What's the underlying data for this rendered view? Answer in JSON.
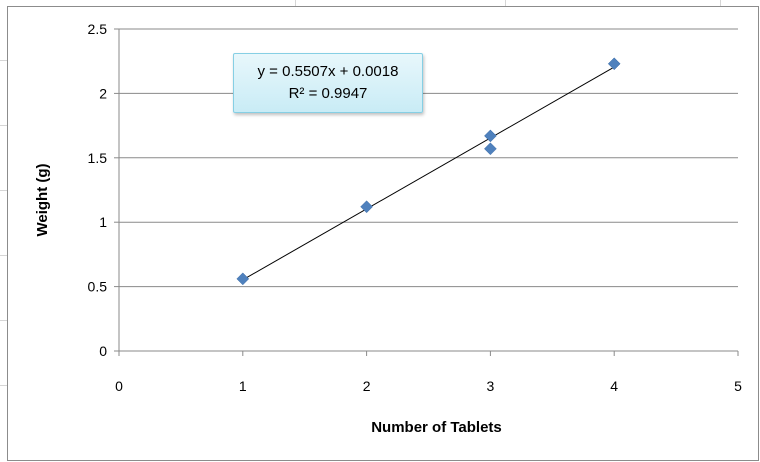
{
  "chart_data": {
    "type": "scatter",
    "title": "",
    "xlabel": "Number of Tablets",
    "ylabel": "Weight (g)",
    "xlim": [
      0,
      5
    ],
    "ylim": [
      0,
      2.5
    ],
    "x_ticks": [
      "0",
      "1",
      "2",
      "3",
      "4",
      "5"
    ],
    "y_ticks": [
      "0",
      "0.5",
      "1",
      "1.5",
      "2",
      "2.5"
    ],
    "grid": "horizontal",
    "legend": "none",
    "series": [
      {
        "points": [
          {
            "x": 1,
            "y": 0.56
          },
          {
            "x": 2,
            "y": 1.12
          },
          {
            "x": 3,
            "y": 1.57
          },
          {
            "x": 3,
            "y": 1.67
          },
          {
            "x": 4,
            "y": 2.23
          }
        ],
        "marker": "diamond",
        "color": "#4f81bd"
      }
    ],
    "trendline": {
      "type": "linear",
      "slope": 0.5507,
      "intercept": 0.0018,
      "x_range": [
        1,
        4
      ],
      "color": "#000000",
      "equation_label": "y = 0.5507x + 0.0018",
      "r2_label": "R² = 0.9947"
    }
  }
}
